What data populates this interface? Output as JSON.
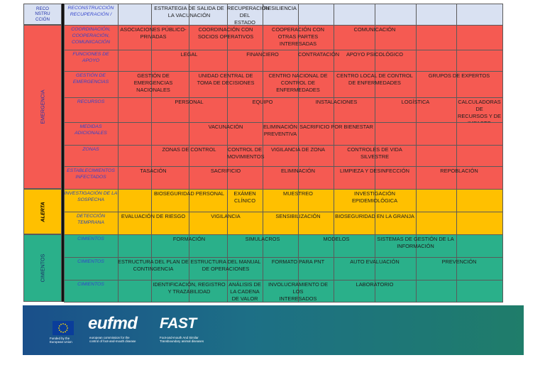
{
  "colors": {
    "header": "#d9e1f2",
    "emergency": "#f55a52",
    "alert": "#ffc000",
    "foundation": "#2ab08a",
    "label_blue": "#3344cc",
    "label_yellow": "#2244bb"
  },
  "sections": {
    "reconstruction": "RECO\nNSTRU\nCCIÓN",
    "emergency": "EMERGENCIA",
    "alert": "ALERTA",
    "foundation": "CIMIENTOS"
  },
  "rows": [
    {
      "id": "reconstruccion",
      "label": "RECONSTRUCCIÓN\nRECUPERACIÓN /",
      "color": "header",
      "items": [
        {
          "text": "ESTRATEGIA DE SALIDA DE\nLA VACUNACIÓN",
          "col": 2,
          "span": 2
        },
        {
          "text": "RECUPERACIÓN DEL\nESTADO LIBRE",
          "col": 4,
          "span": 1
        },
        {
          "text": "RESILIENCIA",
          "col": 5,
          "span": 1
        }
      ]
    },
    {
      "id": "coordinacion",
      "label": "COORDINACIÓN,\nCOOPERACIÓN,\nCOMUNICACIÓN",
      "color": "emergency",
      "items": [
        {
          "text": "ASOCIACIONES PÚBLICO-\nPRIVADAS",
          "col": 1,
          "span": 2
        },
        {
          "text": "COORDINACIÓN CON\nSOCIOS OPERATIVOS",
          "col": 3,
          "span": 2
        },
        {
          "text": "COOPERACIÓN CON\nOTRAS PARTES\nINTERESADAS",
          "col": 5,
          "span": 2
        },
        {
          "text": "COMUNICACIÓN",
          "col": 7,
          "span": 2
        }
      ]
    },
    {
      "id": "funciones",
      "label": "FUNCIONES DE APOYO",
      "color": "emergency",
      "items": [
        {
          "text": "LEGAL",
          "col": 2,
          "span": 2
        },
        {
          "text": "FINANCIERO",
          "col": 4,
          "span": 2
        },
        {
          "text": "CONTRATACIÓN",
          "col": 6,
          "span": 1
        },
        {
          "text": "APOYO PSICOLÓGICO",
          "col": 7,
          "span": 2
        }
      ]
    },
    {
      "id": "gestion",
      "label": "GESTIÓN DE\nEMERGENCIAS",
      "color": "emergency",
      "items": [
        {
          "text": "GESTIÓN DE\nEMERGENCIAS\nNACIONALES",
          "col": 1,
          "span": 2
        },
        {
          "text": "UNIDAD CENTRAL DE\nTOMA DE DECISIONES",
          "col": 3,
          "span": 2
        },
        {
          "text": "CENTRO NACIONAL DE\nCONTROL DE\nENFERMEDADES",
          "col": 5,
          "span": 2
        },
        {
          "text": "CENTRO LOCAL DE CONTROL\nDE ENFERMEDADES",
          "col": 7,
          "span": 2
        },
        {
          "text": "GRUPOS DE EXPERTOS",
          "col": 9,
          "span": 2
        }
      ]
    },
    {
      "id": "recursos",
      "label": "RECURSOS",
      "color": "emergency",
      "items": [
        {
          "text": "PERSONAL",
          "col": 2,
          "span": 2
        },
        {
          "text": "EQUIPO",
          "col": 4,
          "span": 2
        },
        {
          "text": "INSTALACIONES",
          "col": 6,
          "span": 2
        },
        {
          "text": "LOGÍSTICA",
          "col": 8,
          "span": 2
        },
        {
          "text": "CALCULADORAS DE\nRECURSOS Y DE\nIMPACTO",
          "col": 10,
          "span": 1
        }
      ]
    },
    {
      "id": "medidas",
      "label": "MEDIDAS\nADICIONALES",
      "color": "emergency",
      "items": [
        {
          "text": "VACUNACIÓN",
          "col": 3,
          "span": 2
        },
        {
          "text": "ELIMINACIÓN\nPREVENTIVA",
          "col": 5,
          "span": 1
        },
        {
          "text": "SACRIFICIO POR BIENESTAR",
          "col": 6,
          "span": 2
        }
      ]
    },
    {
      "id": "zonas",
      "label": "ZONAS",
      "color": "emergency",
      "items": [
        {
          "text": "ZONAS DE CONTROL",
          "col": 2,
          "span": 2
        },
        {
          "text": "CONTROL DE\nMOVIMIENTOS",
          "col": 4,
          "span": 1
        },
        {
          "text": "VIGILANCIA DE ZONA",
          "col": 5,
          "span": 2
        },
        {
          "text": "CONTROLES DE VIDA SILVESTRE",
          "col": 7,
          "span": 2
        }
      ]
    },
    {
      "id": "establecimientos",
      "label": "ESTABLECIMIENTOS\nINFECTADOS",
      "color": "emergency",
      "items": [
        {
          "text": "TASACIÓN",
          "col": 1,
          "span": 2
        },
        {
          "text": "SACRIFICIO",
          "col": 3,
          "span": 2
        },
        {
          "text": "ELIMINACIÓN",
          "col": 5,
          "span": 2
        },
        {
          "text": "LIMPIEZA Y DESINFECCIÓN",
          "col": 7,
          "span": 2
        },
        {
          "text": "REPOBLACIÓN",
          "col": 9,
          "span": 2
        }
      ]
    },
    {
      "id": "investigacion",
      "label": "INVESTIGACIÓN DE LA\nSOSPECHA",
      "color": "alert",
      "items": [
        {
          "text": "BIOSEGURIDAD PERSONAL",
          "col": 2,
          "span": 2
        },
        {
          "text": "EXÁMEN CLÍNICO",
          "col": 4,
          "span": 1
        },
        {
          "text": "MUESTREO",
          "col": 5,
          "span": 2
        },
        {
          "text": "INVESTIGACIÓN\nEPIDEMIOLÓGICA",
          "col": 7,
          "span": 2
        }
      ]
    },
    {
      "id": "deteccion",
      "label": "DETECCIÓN\nTEMPRANA",
      "color": "alert",
      "items": [
        {
          "text": "EVALUACIÓN DE RIESGO",
          "col": 1,
          "span": 2
        },
        {
          "text": "VIGILANCIA",
          "col": 3,
          "span": 2
        },
        {
          "text": "SENSIBILIZACIÓN",
          "col": 5,
          "span": 2
        },
        {
          "text": "BIOSEGURIDAD EN LA GRANJA",
          "col": 7,
          "span": 2
        }
      ]
    },
    {
      "id": "cimientos1",
      "label": "CIMIENTOS",
      "color": "foundation",
      "items": [
        {
          "text": "FORMACIÓN",
          "col": 2,
          "span": 2
        },
        {
          "text": "SIMULACROS",
          "col": 4,
          "span": 2
        },
        {
          "text": "MODELOS",
          "col": 6,
          "span": 2
        },
        {
          "text": "SISTEMAS DE GESTIÓN DE LA\nINFORMACIÓN",
          "col": 8,
          "span": 2
        }
      ]
    },
    {
      "id": "cimientos2",
      "label": "CIMIENTOS",
      "color": "foundation",
      "items": [
        {
          "text": "ESTRUCTURA DEL PLAN DE\nCONTINGENCIA",
          "col": 1,
          "span": 2
        },
        {
          "text": "ESTRUCTURA DEL MANUAL\nDE OPERACIONES",
          "col": 3,
          "span": 2
        },
        {
          "text": "FORMATO PARA PNT",
          "col": 5,
          "span": 2
        },
        {
          "text": "AUTO EVALUACIÓN",
          "col": 7,
          "span": 2
        },
        {
          "text": "PREVENCIÓN",
          "col": 9,
          "span": 2
        }
      ]
    },
    {
      "id": "cimientos3",
      "label": "CIMIENTOS",
      "color": "foundation",
      "items": [
        {
          "text": "IDENTIFICACIÓN, REGISTRO\nY TRAZABILIDAD",
          "col": 2,
          "span": 2
        },
        {
          "text": "ANÁLISIS DE LA CADENA\nDE VALOR",
          "col": 4,
          "span": 1
        },
        {
          "text": "INVOLUCRAMIENTO DE LOS\nINTERESADOS",
          "col": 5,
          "span": 2
        },
        {
          "text": "LABORATORIO",
          "col": 7,
          "span": 2
        }
      ]
    }
  ],
  "footer": {
    "eu_caption": "Funded by the\nEuropean Union",
    "eufmd_logo": "eufmd",
    "eufmd_caption": "european commission for the\ncontrol of foot-and-mouth disease",
    "fast_logo": "FAST",
    "fast_caption": "Foot-and-mouth And Similar\nTransboundary animal diseases"
  }
}
